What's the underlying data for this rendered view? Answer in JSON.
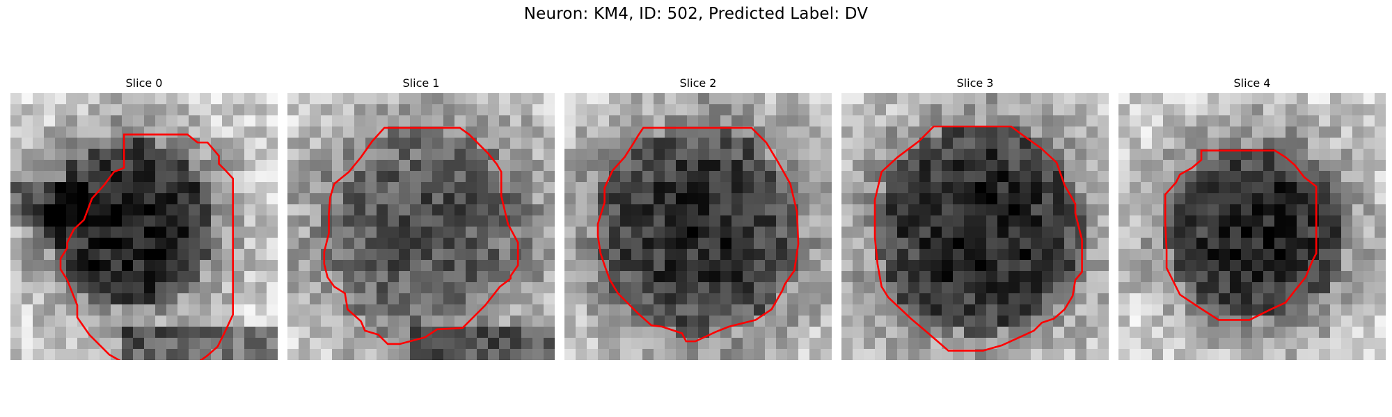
{
  "figure": {
    "title": "Neuron: KM4, ID: 502, Predicted Label: DV"
  },
  "panels": [
    {
      "title": "Slice 0"
    },
    {
      "title": "Slice 1"
    },
    {
      "title": "Slice 2"
    },
    {
      "title": "Slice 3"
    },
    {
      "title": "Slice 4"
    }
  ],
  "colors": {
    "contour": "#ff0000",
    "background": "#ffffff"
  }
}
